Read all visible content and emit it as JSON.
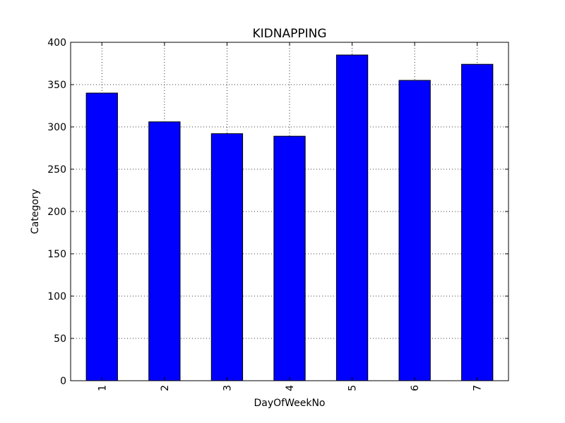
{
  "chart_data": {
    "type": "bar",
    "title": "KIDNAPPING",
    "xlabel": "DayOfWeekNo",
    "ylabel": "Category",
    "categories": [
      "1",
      "2",
      "3",
      "4",
      "5",
      "6",
      "7"
    ],
    "values": [
      340,
      306,
      292,
      289,
      385,
      355,
      374
    ],
    "ylim": [
      0,
      400
    ],
    "yticks": [
      "0",
      "50",
      "100",
      "150",
      "200",
      "250",
      "300",
      "350",
      "400"
    ],
    "grid": true,
    "bar_color": "#0000ff",
    "edge_color": "#000000"
  }
}
